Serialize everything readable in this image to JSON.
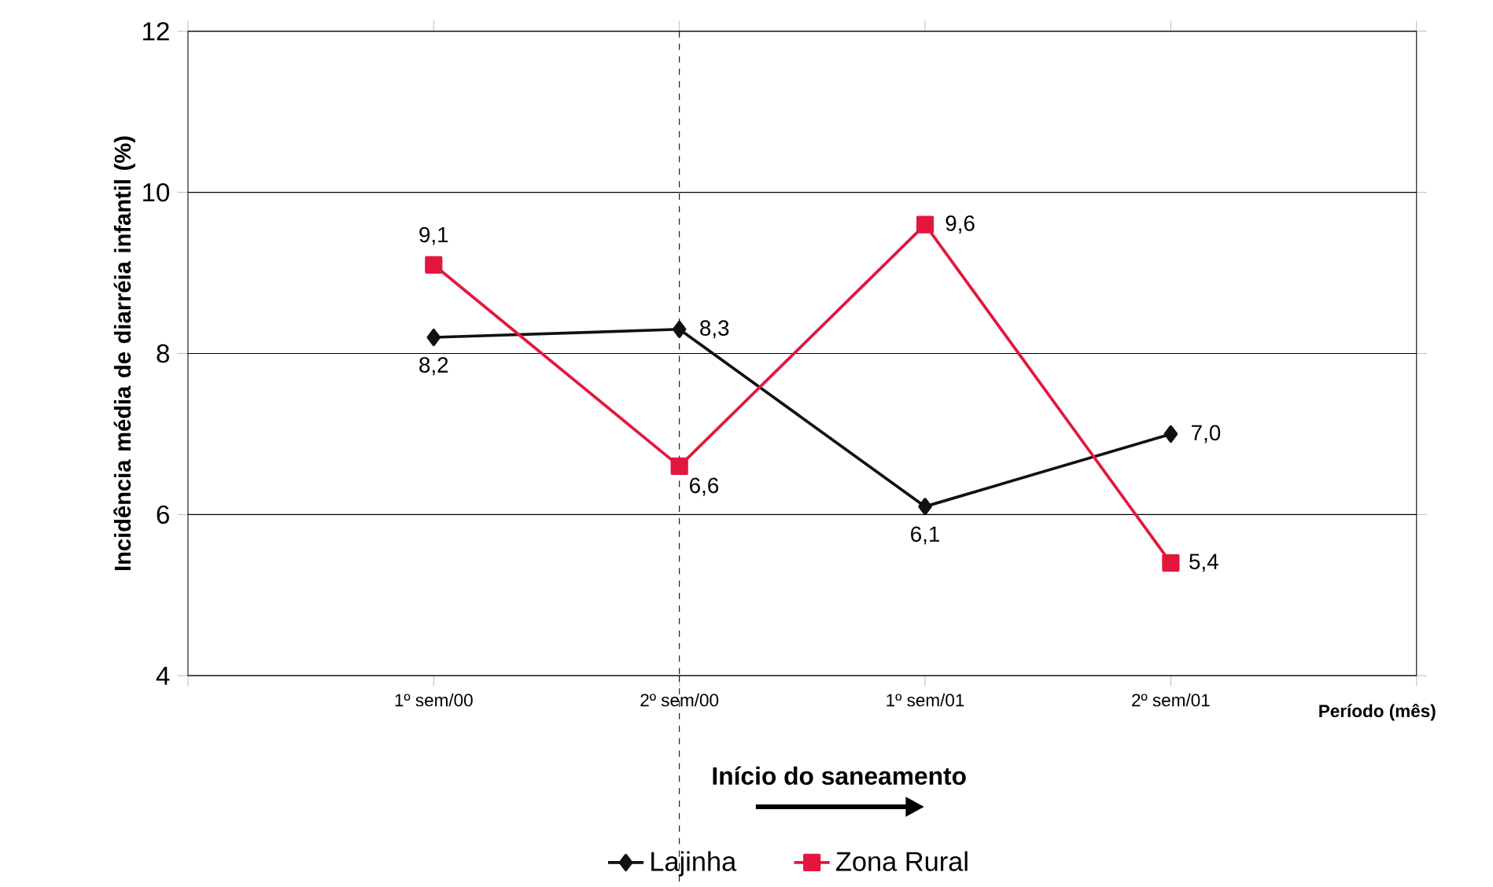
{
  "chart_data": {
    "type": "line",
    "xlabel": "Período (mês)",
    "ylabel": "Incidência média de diarréia infantil (%)",
    "categories": [
      null,
      "1º sem/00",
      "2º sem/00",
      "1º sem/01",
      "2º sem/01",
      null
    ],
    "series": [
      {
        "name": "Lajinha",
        "color": "#111111",
        "marker": "diamond",
        "values": [
          null,
          8.2,
          8.3,
          6.1,
          7.0,
          null
        ],
        "value_labels": [
          null,
          "8,2",
          "8,3",
          "6,1",
          "7,0",
          null
        ]
      },
      {
        "name": "Zona Rural",
        "color": "#e3173e",
        "marker": "square",
        "values": [
          null,
          9.1,
          6.6,
          9.6,
          5.4,
          null
        ],
        "value_labels": [
          null,
          "9,1",
          "6,6",
          "9,6",
          "5,4",
          null
        ]
      }
    ],
    "ylim": [
      4,
      12
    ],
    "yticks": [
      4,
      6,
      8,
      10,
      12
    ],
    "grid": "y",
    "legend": "bottom",
    "line_style": "solid",
    "ref_lines": [
      {
        "axis": "x",
        "value": "2º sem/00",
        "line_style": "dashed"
      }
    ],
    "annotations": [
      "Início do saneamento"
    ]
  }
}
